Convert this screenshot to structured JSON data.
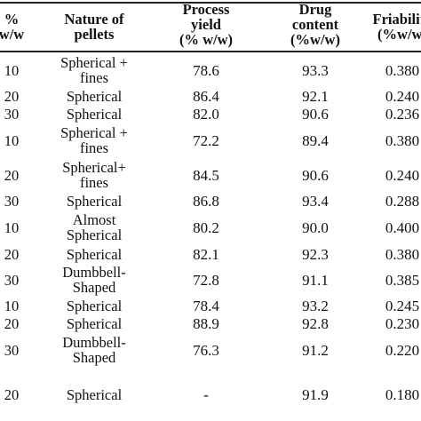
{
  "table": {
    "headers": [
      "%\nw/w",
      "Nature of\npellets",
      "Process\nyield\n(% w/w)",
      "Drug\ncontent\n(%w/w)",
      "Friability\n(%w/w)"
    ],
    "rows": [
      [
        "10",
        "Spherical +\nfines",
        "78.6",
        "93.3",
        "0.380"
      ],
      [
        "20",
        "Spherical",
        "86.4",
        "92.1",
        "0.240"
      ],
      [
        "30",
        "Spherical",
        "82.0",
        "90.6",
        "0.236"
      ],
      [
        "10",
        "Spherical +\nfines",
        "72.2",
        "89.4",
        "0.380"
      ],
      [
        "20",
        "Spherical+\nfines",
        "84.5",
        "90.6",
        "0.240"
      ],
      [
        "30",
        "Spherical",
        "86.8",
        "93.4",
        "0.288"
      ],
      [
        "10",
        "Almost\nSpherical",
        "80.2",
        "90.0",
        "0.400"
      ],
      [
        "20",
        "Spherical",
        "82.1",
        "92.3",
        "0.380"
      ],
      [
        "30",
        "Dumbbell-\nShaped",
        "72.8",
        "91.1",
        "0.385"
      ],
      [
        "10",
        "Spherical",
        "78.4",
        "93.2",
        "0.245"
      ],
      [
        "20",
        "Spherical",
        "88.9",
        "92.8",
        "0.230"
      ],
      [
        "30",
        "Dumbbell-\nShaped",
        "76.3",
        "91.2",
        "0.220"
      ],
      [
        "20",
        "Spherical",
        "-",
        "91.9",
        "0.180"
      ]
    ]
  }
}
